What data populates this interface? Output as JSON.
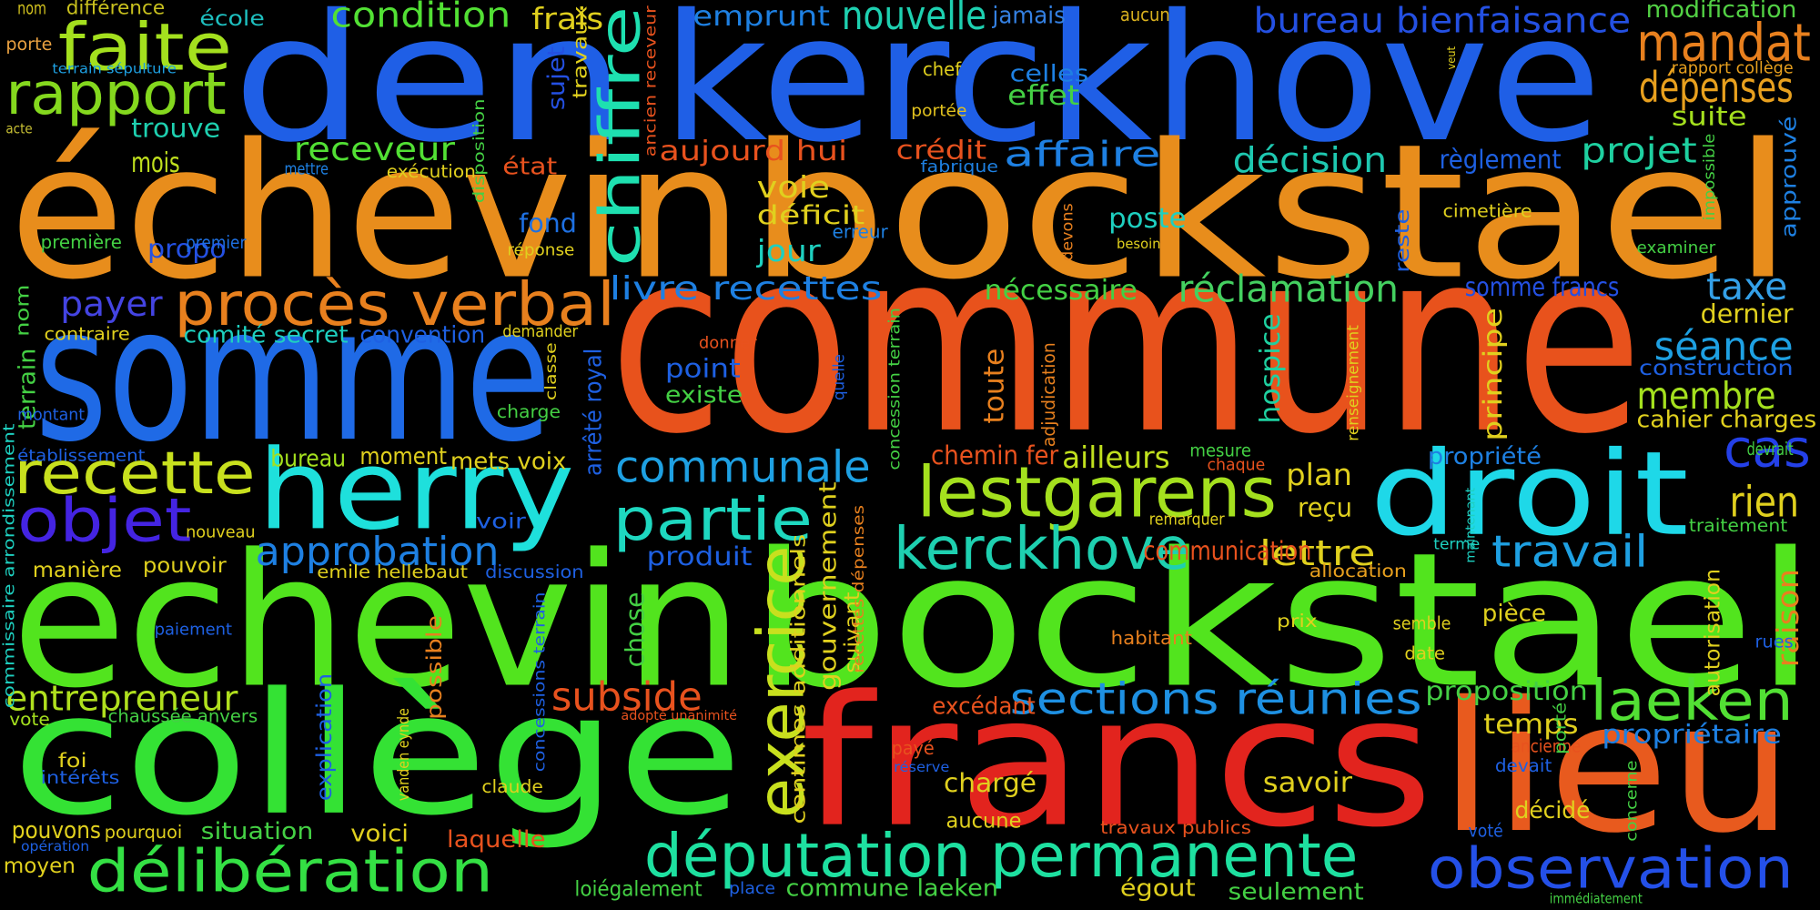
{
  "words": [
    {
      "text": "den",
      "color": "#1f5fe6"
    },
    {
      "text": "kerckhove",
      "color": "#1f5fe6"
    },
    {
      "text": "échevin",
      "color": "#e88d1c"
    },
    {
      "text": "bockstael",
      "color": "#e88d1c"
    },
    {
      "text": "commune",
      "color": "#e8521c"
    },
    {
      "text": "somme",
      "color": "#1f6ae6"
    },
    {
      "text": "herry",
      "color": "#1ee0dc"
    },
    {
      "text": "droit",
      "color": "#1ed8e8"
    },
    {
      "text": "echevin",
      "color": "#52e41e"
    },
    {
      "text": "bockstael",
      "color": "#52e41e"
    },
    {
      "text": "collège",
      "color": "#34e234"
    },
    {
      "text": "francs",
      "color": "#e2241e"
    },
    {
      "text": "lieu",
      "color": "#e85a1e"
    },
    {
      "text": "procès verbal",
      "color": "#e8801e"
    },
    {
      "text": "faite",
      "color": "#a4e01e"
    },
    {
      "text": "rapport",
      "color": "#84d81e"
    },
    {
      "text": "recette",
      "color": "#c8e01e"
    },
    {
      "text": "objet",
      "color": "#4424e2"
    },
    {
      "text": "exercice",
      "color": "#c8e01e"
    },
    {
      "text": "chiffre",
      "color": "#1ee0b0"
    },
    {
      "text": "lestgarens",
      "color": "#a4e01e"
    },
    {
      "text": "kerckhove",
      "color": "#1ed0b0"
    },
    {
      "text": "partie",
      "color": "#1ed8c0"
    },
    {
      "text": "communale",
      "color": "#1ea0e2"
    },
    {
      "text": "approbation",
      "color": "#1e80e2"
    },
    {
      "text": "délibération",
      "color": "#34e044"
    },
    {
      "text": "députation permanente",
      "color": "#1ee0a0"
    },
    {
      "text": "observation",
      "color": "#2450e8"
    },
    {
      "text": "entrepreneur",
      "color": "#b0e01e"
    },
    {
      "text": "sections réunies",
      "color": "#1e90e2"
    },
    {
      "text": "laeken",
      "color": "#52e034"
    },
    {
      "text": "subside",
      "color": "#e8521e"
    },
    {
      "text": "travail",
      "color": "#1ea0e2"
    },
    {
      "text": "cas",
      "color": "#2440e8"
    },
    {
      "text": "rien",
      "color": "#e0d01e"
    },
    {
      "text": "séance",
      "color": "#1ea0e2"
    },
    {
      "text": "membre",
      "color": "#a4e01e"
    },
    {
      "text": "taxe",
      "color": "#34a0e8"
    },
    {
      "text": "mandat",
      "color": "#e8801e"
    },
    {
      "text": "dépenses",
      "color": "#e8a01e"
    },
    {
      "text": "nouvelle",
      "color": "#1ed0b0"
    },
    {
      "text": "bureau bienfaisance",
      "color": "#2450e2"
    },
    {
      "text": "condition",
      "color": "#52e034"
    },
    {
      "text": "frais",
      "color": "#e0d01e"
    },
    {
      "text": "emprunt",
      "color": "#1e80e2"
    },
    {
      "text": "jamais",
      "color": "#3480e2"
    },
    {
      "text": "aucun",
      "color": "#d8b01e"
    },
    {
      "text": "modification",
      "color": "#52d044"
    },
    {
      "text": "nom",
      "color": "#d0c01e"
    },
    {
      "text": "différence",
      "color": "#c8c01e"
    },
    {
      "text": "école",
      "color": "#1ec0c0"
    },
    {
      "text": "porte",
      "color": "#e8a040"
    },
    {
      "text": "terrain sépulture",
      "color": "#1ea0e2"
    },
    {
      "text": "acte",
      "color": "#c8c034"
    },
    {
      "text": "trouve",
      "color": "#1ed0b0"
    },
    {
      "text": "mois",
      "color": "#c0e01e"
    },
    {
      "text": "propo",
      "color": "#2450e2"
    },
    {
      "text": "première",
      "color": "#44d044"
    },
    {
      "text": "premier",
      "color": "#1e70e2"
    },
    {
      "text": "receveur",
      "color": "#52e034"
    },
    {
      "text": "sujet",
      "color": "#2450e2"
    },
    {
      "text": "travaux",
      "color": "#e0d01e"
    },
    {
      "text": "ancien receveur",
      "color": "#e8521e"
    },
    {
      "text": "aujourd hui",
      "color": "#e8521e"
    },
    {
      "text": "crédit",
      "color": "#e8521e"
    },
    {
      "text": "affaire",
      "color": "#1e80e2"
    },
    {
      "text": "chef",
      "color": "#e0d01e"
    },
    {
      "text": "celles",
      "color": "#1e80e2"
    },
    {
      "text": "effet",
      "color": "#44d044"
    },
    {
      "text": "portée",
      "color": "#e0c01e"
    },
    {
      "text": "fabrique",
      "color": "#1e80e2"
    },
    {
      "text": "état",
      "color": "#e8521e"
    },
    {
      "text": "exécution",
      "color": "#e0d01e"
    },
    {
      "text": "mettre",
      "color": "#1e80e2"
    },
    {
      "text": "disposition",
      "color": "#44d044"
    },
    {
      "text": "voie",
      "color": "#e0d01e"
    },
    {
      "text": "déficit",
      "color": "#e0d01e"
    },
    {
      "text": "jour",
      "color": "#1ed0c0"
    },
    {
      "text": "erreur",
      "color": "#1e80e2"
    },
    {
      "text": "fond",
      "color": "#1e70e2"
    },
    {
      "text": "réponse",
      "color": "#e0d01e"
    },
    {
      "text": "projet",
      "color": "#1ed0a0"
    },
    {
      "text": "décision",
      "color": "#1ec8b0"
    },
    {
      "text": "règlement",
      "color": "#1e60e2"
    },
    {
      "text": "suite",
      "color": "#a4e01e"
    },
    {
      "text": "rapport collège",
      "color": "#e8a01e"
    },
    {
      "text": "veut",
      "color": "#e0d01e"
    },
    {
      "text": "impossible",
      "color": "#44d044"
    },
    {
      "text": "approuvé",
      "color": "#1e80e2"
    },
    {
      "text": "examiner",
      "color": "#44d044"
    },
    {
      "text": "cimetière",
      "color": "#e0d01e"
    },
    {
      "text": "reste",
      "color": "#1e60e2"
    },
    {
      "text": "besoin",
      "color": "#e0d01e"
    },
    {
      "text": "devons",
      "color": "#e8801e"
    },
    {
      "text": "poste",
      "color": "#1ed0c0"
    },
    {
      "text": "nécessaire",
      "color": "#44d044"
    },
    {
      "text": "réclamation",
      "color": "#44d060"
    },
    {
      "text": "somme francs",
      "color": "#2450e2"
    },
    {
      "text": "dernier",
      "color": "#e0d01e"
    },
    {
      "text": "construction",
      "color": "#1e60e2"
    },
    {
      "text": "cahier charges",
      "color": "#e0d01e"
    },
    {
      "text": "devrait",
      "color": "#44d044"
    },
    {
      "text": "propriété",
      "color": "#1e80e2"
    },
    {
      "text": "principe",
      "color": "#e0d01e"
    },
    {
      "text": "hospice",
      "color": "#1ed0a0"
    },
    {
      "text": "renseignement",
      "color": "#e0d01e"
    },
    {
      "text": "mesure",
      "color": "#44d044"
    },
    {
      "text": "chaque",
      "color": "#e8521e"
    },
    {
      "text": "plan",
      "color": "#e0d01e"
    },
    {
      "text": "reçu",
      "color": "#e0d01e"
    },
    {
      "text": "lettre",
      "color": "#e0d01e"
    },
    {
      "text": "allocation",
      "color": "#e8a01e"
    },
    {
      "text": "terme",
      "color": "#1ed0c0"
    },
    {
      "text": "maintenant",
      "color": "#1ed0c0"
    },
    {
      "text": "traitement",
      "color": "#44d044"
    },
    {
      "text": "autorisation",
      "color": "#e0d01e"
    },
    {
      "text": "raison",
      "color": "#e8801e"
    },
    {
      "text": "communication",
      "color": "#e8521e"
    },
    {
      "text": "remarquer",
      "color": "#e0d01e"
    },
    {
      "text": "ailleurs",
      "color": "#c0e01e"
    },
    {
      "text": "chemin fer",
      "color": "#e8521e"
    },
    {
      "text": "toute",
      "color": "#e8801e"
    },
    {
      "text": "adjudication",
      "color": "#e8801e"
    },
    {
      "text": "concession terrain",
      "color": "#44d044"
    },
    {
      "text": "quelle",
      "color": "#1e60e2"
    },
    {
      "text": "livre recettes",
      "color": "#1e80e2"
    },
    {
      "text": "payer",
      "color": "#4444e2"
    },
    {
      "text": "nom",
      "color": "#44d044"
    },
    {
      "text": "terrain",
      "color": "#44d044"
    },
    {
      "text": "contraire",
      "color": "#e0d01e"
    },
    {
      "text": "comité secret",
      "color": "#1ed0c0"
    },
    {
      "text": "convention",
      "color": "#1e60e2"
    },
    {
      "text": "demander",
      "color": "#e0d01e"
    },
    {
      "text": "donner",
      "color": "#e8521e"
    },
    {
      "text": "point",
      "color": "#1e60e2"
    },
    {
      "text": "existe",
      "color": "#44d044"
    },
    {
      "text": "classe",
      "color": "#e0d01e"
    },
    {
      "text": "charge",
      "color": "#44d044"
    },
    {
      "text": "montant",
      "color": "#1e60e2"
    },
    {
      "text": "arrêté royal",
      "color": "#1e60e2"
    },
    {
      "text": "établissement",
      "color": "#1e60e2"
    },
    {
      "text": "commissaire arrondissement",
      "color": "#1ed0c0"
    },
    {
      "text": "bureau",
      "color": "#a4e01e"
    },
    {
      "text": "moment",
      "color": "#e0d01e"
    },
    {
      "text": "mets voix",
      "color": "#e0d01e"
    },
    {
      "text": "voir",
      "color": "#1e60e2"
    },
    {
      "text": "nouveau",
      "color": "#e0d01e"
    },
    {
      "text": "manière",
      "color": "#e0d01e"
    },
    {
      "text": "pouvoir",
      "color": "#e0d01e"
    },
    {
      "text": "emile hellebaut",
      "color": "#e0d01e"
    },
    {
      "text": "discussion",
      "color": "#1e60e2"
    },
    {
      "text": "produit",
      "color": "#1e60e2"
    },
    {
      "text": "chose",
      "color": "#44d044"
    },
    {
      "text": "concessions terrain",
      "color": "#1e60e2"
    },
    {
      "text": "explication",
      "color": "#1e60e2"
    },
    {
      "text": "possible",
      "color": "#e8801e"
    },
    {
      "text": "paiement",
      "color": "#1e60e2"
    },
    {
      "text": "vanden eynde",
      "color": "#e0d01e"
    },
    {
      "text": "vote",
      "color": "#a4e01e"
    },
    {
      "text": "chaussée anvers",
      "color": "#44d044"
    },
    {
      "text": "foi",
      "color": "#e0d01e"
    },
    {
      "text": "intérêts",
      "color": "#1e60e2"
    },
    {
      "text": "claude",
      "color": "#e0d01e"
    },
    {
      "text": "pouvons",
      "color": "#e0d01e"
    },
    {
      "text": "pourquoi",
      "color": "#e0d01e"
    },
    {
      "text": "opération",
      "color": "#1e60e2"
    },
    {
      "text": "situation",
      "color": "#44d044"
    },
    {
      "text": "voici",
      "color": "#e0d01e"
    },
    {
      "text": "laquelle",
      "color": "#e8521e"
    },
    {
      "text": "moyen",
      "color": "#e0d01e"
    },
    {
      "text": "loiégalement",
      "color": "#44d044"
    },
    {
      "text": "place",
      "color": "#1e60e2"
    },
    {
      "text": "commune laeken",
      "color": "#44d044"
    },
    {
      "text": "égout",
      "color": "#e0d01e"
    },
    {
      "text": "seulement",
      "color": "#44d044"
    },
    {
      "text": "immédiatement",
      "color": "#44d044"
    },
    {
      "text": "adopté unanimité",
      "color": "#e8521e"
    },
    {
      "text": "centimes additionnels",
      "color": "#e0d01e"
    },
    {
      "text": "gouvernement",
      "color": "#e0d01e"
    },
    {
      "text": "suivant",
      "color": "#e0d01e"
    },
    {
      "text": "recettes dépenses",
      "color": "#e8801e"
    },
    {
      "text": "payé",
      "color": "#e8521e"
    },
    {
      "text": "réserve",
      "color": "#1e60e2"
    },
    {
      "text": "excédant",
      "color": "#e8521e"
    },
    {
      "text": "chargé",
      "color": "#e0d01e"
    },
    {
      "text": "aucune",
      "color": "#e0d01e"
    },
    {
      "text": "habitant",
      "color": "#e8801e"
    },
    {
      "text": "travaux publics",
      "color": "#e8521e"
    },
    {
      "text": "savoir",
      "color": "#e0d01e"
    },
    {
      "text": "temps",
      "color": "#e0d01e"
    },
    {
      "text": "proposition",
      "color": "#44d044"
    },
    {
      "text": "décidé",
      "color": "#e0d01e"
    },
    {
      "text": "voté",
      "color": "#1e60e2"
    },
    {
      "text": "devait",
      "color": "#1e60e2"
    },
    {
      "text": "ancienne",
      "color": "#e8521e"
    },
    {
      "text": "porté",
      "color": "#44d044"
    },
    {
      "text": "propriétaire",
      "color": "#1e80e2"
    },
    {
      "text": "concerne",
      "color": "#44d044"
    },
    {
      "text": "pièce",
      "color": "#e0d01e"
    },
    {
      "text": "semble",
      "color": "#e0d01e"
    },
    {
      "text": "date",
      "color": "#e0d01e"
    },
    {
      "text": "prix",
      "color": "#e0d01e"
    },
    {
      "text": "rues",
      "color": "#1e60e2"
    }
  ]
}
